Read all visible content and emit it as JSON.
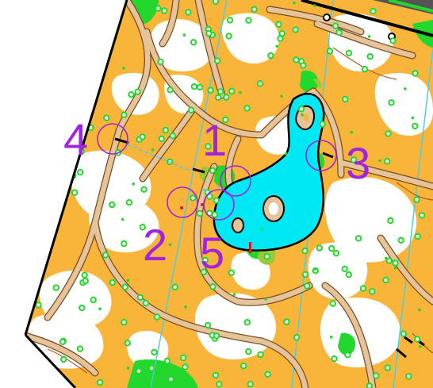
{
  "map": {
    "colors": {
      "open_land": "#f9b43a",
      "forest": "#ffffff",
      "lake": "#00e8f4",
      "path": "#e6c49a",
      "path_edge": "#7a4a20",
      "green_vegetation": "#22d82c",
      "course": "#a024e0",
      "magnetic_north": "#3fd0f0",
      "border": "#000000"
    },
    "controls": [
      {
        "number": "1"
      },
      {
        "number": "2"
      },
      {
        "number": "3"
      },
      {
        "number": "4"
      },
      {
        "number": "5"
      }
    ]
  }
}
